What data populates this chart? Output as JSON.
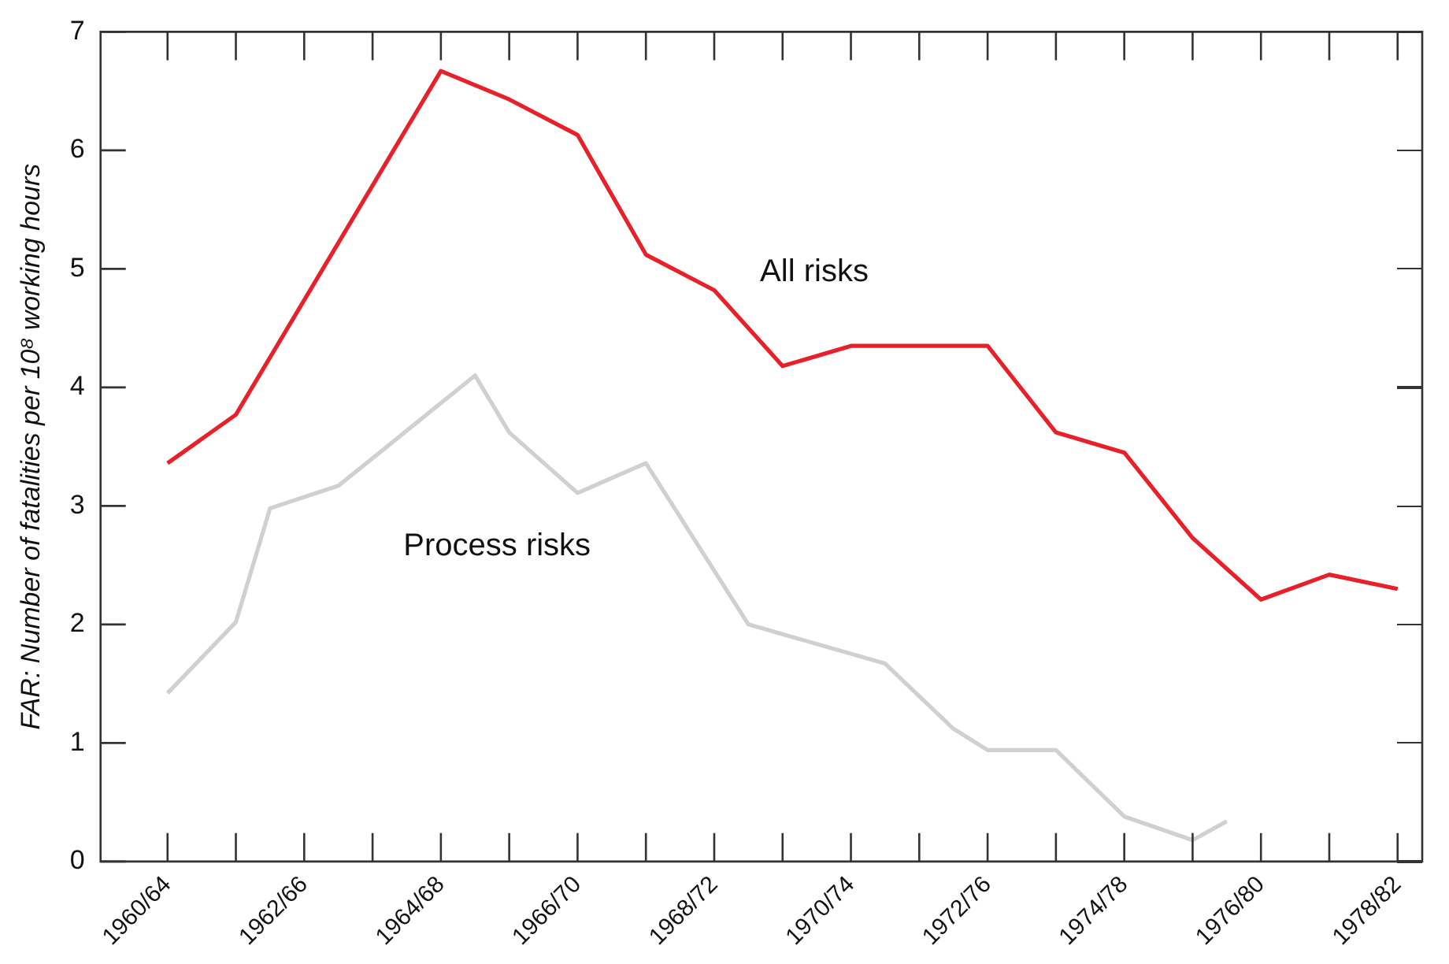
{
  "chart_data": {
    "type": "line",
    "ylabel": "FAR: Number of fatalities per 10⁸ working hours",
    "categories": [
      "1960/64",
      null,
      null,
      null,
      "1962/66",
      null,
      null,
      null,
      "1964/68",
      null,
      null,
      null,
      "1966/70",
      null,
      null,
      null,
      "1968/72",
      null,
      null,
      null,
      "1970/74",
      null,
      null,
      null,
      "1972/76",
      null,
      null,
      null,
      "1974/78",
      null,
      null,
      null,
      "1976/80",
      null,
      null,
      null,
      "1978/82"
    ],
    "ylim": [
      0,
      7
    ],
    "yticks": [
      0,
      1,
      2,
      3,
      4,
      5,
      6,
      7
    ],
    "marker": "none",
    "line_style": "solid",
    "series": [
      {
        "name": "All risks",
        "color": "#e8202a",
        "values": [
          3.36,
          null,
          3.77,
          null,
          null,
          null,
          null,
          null,
          6.67,
          null,
          6.43,
          null,
          6.13,
          null,
          5.12,
          null,
          4.82,
          null,
          4.18,
          null,
          4.35,
          null,
          null,
          null,
          4.35,
          null,
          3.62,
          null,
          3.45,
          null,
          2.73,
          null,
          2.21,
          null,
          2.42,
          null,
          2.3
        ]
      },
      {
        "name": "Process risks",
        "color": "#d0d0d0",
        "values": [
          1.42,
          null,
          2.02,
          2.98,
          null,
          3.17,
          null,
          null,
          null,
          4.1,
          3.62,
          null,
          3.11,
          null,
          3.36,
          null,
          null,
          2.0,
          null,
          null,
          null,
          1.67,
          null,
          1.12,
          0.94,
          null,
          0.94,
          null,
          0.38,
          null,
          0.18,
          0.34,
          null,
          null,
          null,
          null,
          null
        ]
      }
    ]
  }
}
